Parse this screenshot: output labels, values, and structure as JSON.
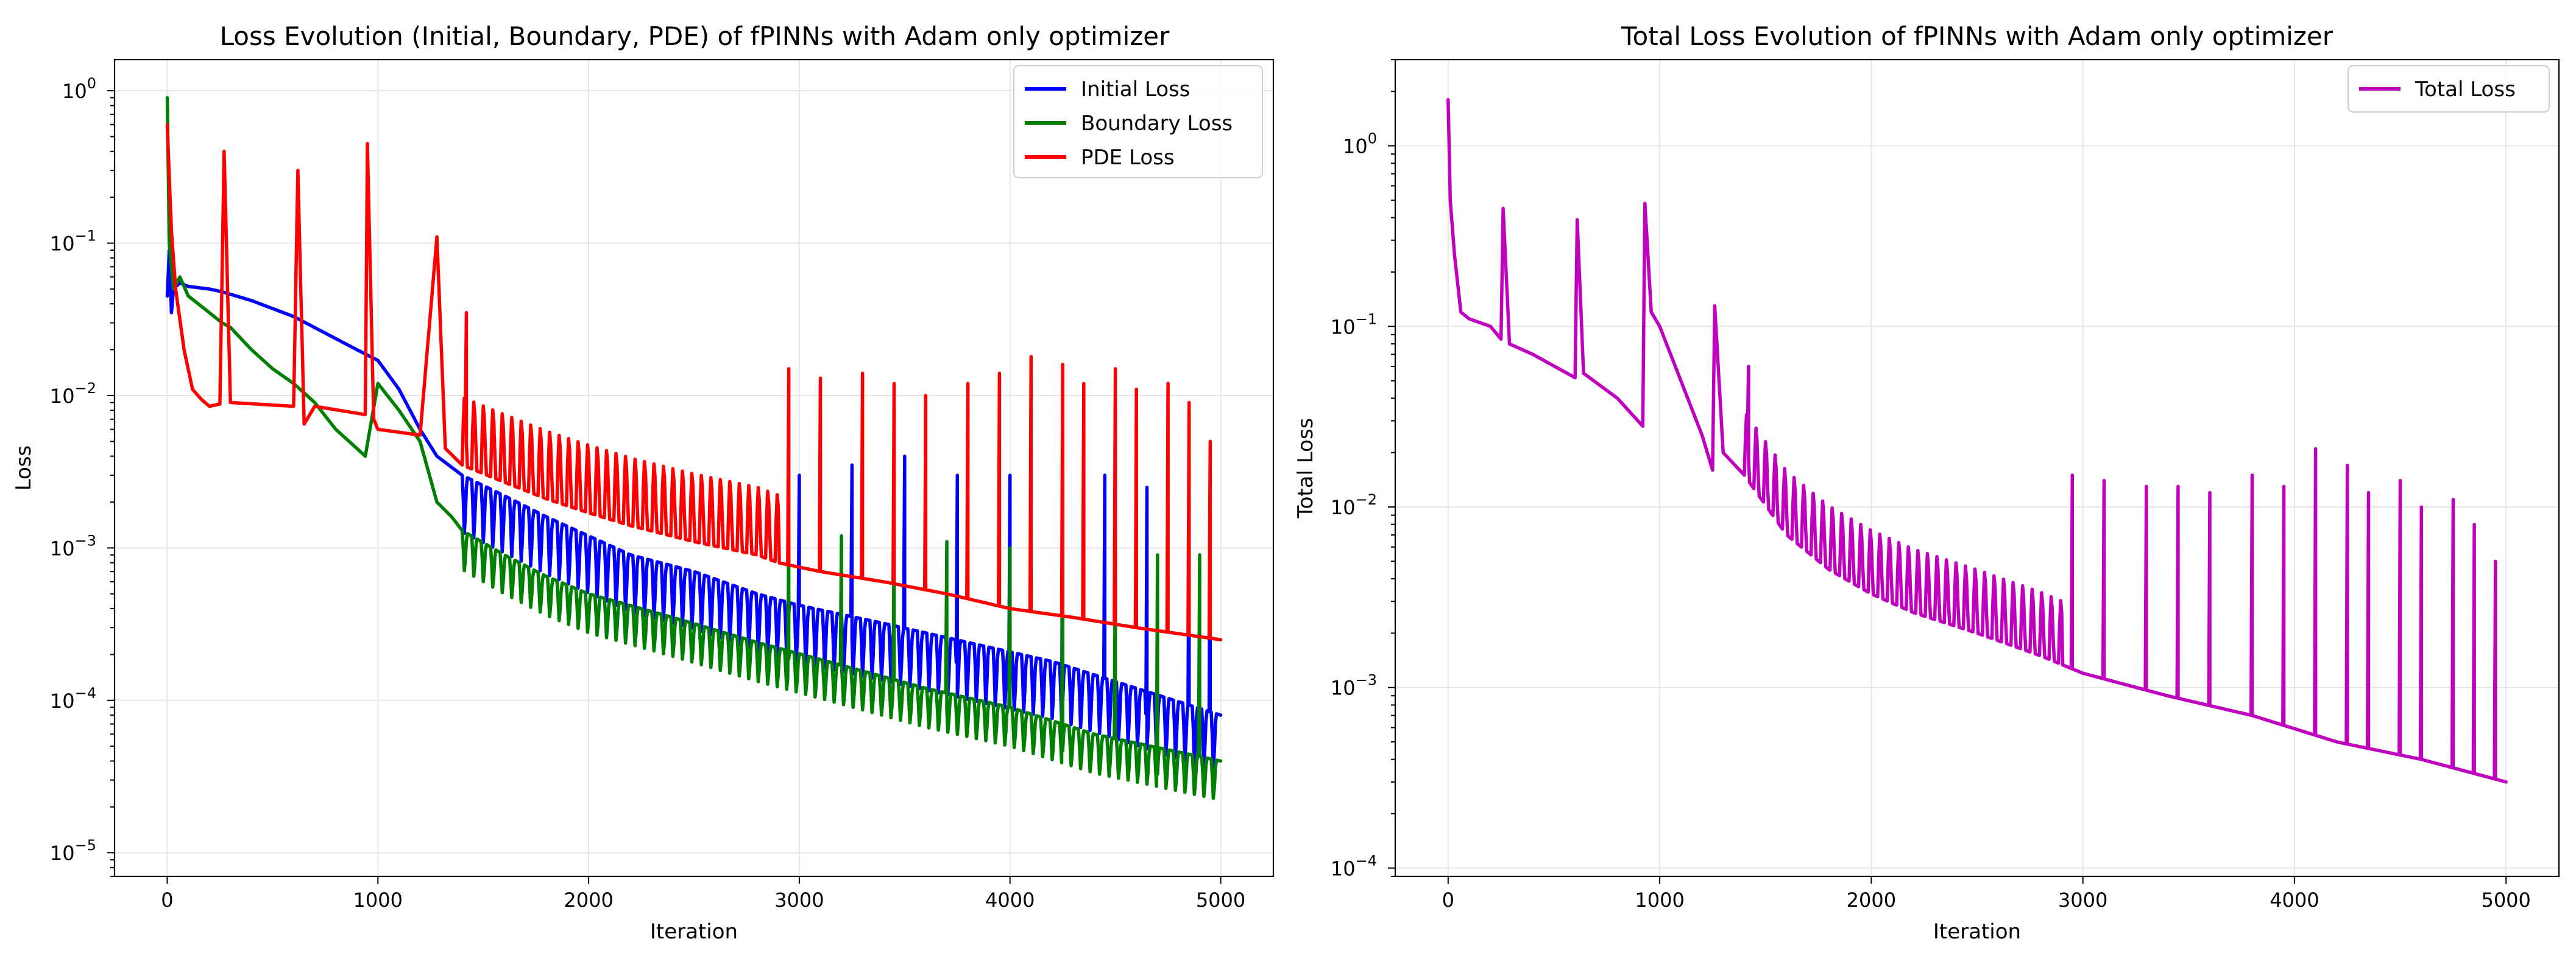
{
  "chart_data": [
    {
      "type": "line",
      "title": "Loss Evolution (Initial, Boundary, PDE) of fPINNs with Adam only optimizer",
      "xlabel": "Iteration",
      "ylabel": "Loss",
      "yscale": "log",
      "grid": true,
      "legend_position": "top-right",
      "xlim": [
        -250,
        5250
      ],
      "ylim": [
        7e-06,
        1.6
      ],
      "xticks": [
        0,
        1000,
        2000,
        3000,
        4000,
        5000
      ],
      "xtick_labels": [
        "0",
        "1000",
        "2000",
        "3000",
        "4000",
        "5000"
      ],
      "ytick_exponents": [
        0,
        -1,
        -2,
        -3,
        -4,
        -5
      ],
      "ytick_base": "10",
      "series": [
        {
          "name": "Initial Loss",
          "color": "#0000ff",
          "points": [
            [
              0,
              0.045
            ],
            [
              10,
              0.09
            ],
            [
              20,
              0.035
            ],
            [
              30,
              0.05
            ],
            [
              60,
              0.055
            ],
            [
              100,
              0.052
            ],
            [
              200,
              0.05
            ],
            [
              260,
              0.048
            ],
            [
              400,
              0.042
            ],
            [
              600,
              0.033
            ],
            [
              900,
              0.02
            ],
            [
              1000,
              0.017
            ],
            [
              1100,
              0.011
            ],
            [
              1200,
              0.006
            ],
            [
              1280,
              0.004
            ],
            [
              1400,
              0.003
            ],
            [
              1600,
              0.0022
            ],
            [
              1800,
              0.0016
            ],
            [
              2000,
              0.0012
            ],
            [
              2200,
              0.0009
            ],
            [
              2500,
              0.0007
            ],
            [
              2800,
              0.0005
            ],
            [
              3000,
              0.00042
            ],
            [
              3400,
              0.00032
            ],
            [
              3800,
              0.00024
            ],
            [
              4200,
              0.00018
            ],
            [
              4600,
              0.00012
            ],
            [
              5000,
              8e-05
            ]
          ],
          "osc_start": 1400,
          "osc_period": 45,
          "osc_low_factor": 0.35,
          "spikes": [
            [
              3000,
              0.003
            ],
            [
              3250,
              0.0035
            ],
            [
              3500,
              0.004
            ],
            [
              3750,
              0.003
            ],
            [
              4000,
              0.003
            ],
            [
              4250,
              0.003
            ],
            [
              4450,
              0.003
            ],
            [
              4650,
              0.0025
            ],
            [
              4850,
              0.0025
            ],
            [
              4950,
              0.0025
            ]
          ]
        },
        {
          "name": "Boundary Loss",
          "color": "#008000",
          "points": [
            [
              0,
              0.9
            ],
            [
              10,
              0.1
            ],
            [
              30,
              0.05
            ],
            [
              60,
              0.06
            ],
            [
              100,
              0.045
            ],
            [
              200,
              0.035
            ],
            [
              260,
              0.03
            ],
            [
              300,
              0.028
            ],
            [
              400,
              0.02
            ],
            [
              500,
              0.015
            ],
            [
              600,
              0.012
            ],
            [
              700,
              0.009
            ],
            [
              800,
              0.006
            ],
            [
              900,
              0.0045
            ],
            [
              940,
              0.004
            ],
            [
              1000,
              0.012
            ],
            [
              1100,
              0.008
            ],
            [
              1200,
              0.005
            ],
            [
              1280,
              0.002
            ],
            [
              1350,
              0.0016
            ],
            [
              1400,
              0.0013
            ],
            [
              1600,
              0.0009
            ],
            [
              1800,
              0.00065
            ],
            [
              2000,
              0.0005
            ],
            [
              2400,
              0.00035
            ],
            [
              2800,
              0.00024
            ],
            [
              3200,
              0.00017
            ],
            [
              3600,
              0.00012
            ],
            [
              4000,
              9e-05
            ],
            [
              4400,
              6e-05
            ],
            [
              5000,
              4e-05
            ]
          ],
          "osc_start": 1400,
          "osc_period": 45,
          "osc_low_factor": 0.5,
          "spikes": [
            [
              2950,
              0.0012
            ],
            [
              3200,
              0.0012
            ],
            [
              3450,
              0.0012
            ],
            [
              3700,
              0.0011
            ],
            [
              4000,
              0.001
            ],
            [
              4250,
              0.001
            ],
            [
              4500,
              0.001
            ],
            [
              4700,
              0.0009
            ],
            [
              4900,
              0.0009
            ]
          ]
        },
        {
          "name": "PDE Loss",
          "color": "#ff0000",
          "points": [
            [
              0,
              0.6
            ],
            [
              20,
              0.12
            ],
            [
              40,
              0.05
            ],
            [
              80,
              0.02
            ],
            [
              120,
              0.011
            ],
            [
              160,
              0.0095
            ],
            [
              200,
              0.0085
            ],
            [
              250,
              0.0088
            ],
            [
              270,
              0.4
            ],
            [
              300,
              0.009
            ],
            [
              600,
              0.0085
            ],
            [
              620,
              0.3
            ],
            [
              650,
              0.0065
            ],
            [
              700,
              0.0085
            ],
            [
              940,
              0.0075
            ],
            [
              950,
              0.45
            ],
            [
              980,
              0.007
            ],
            [
              1000,
              0.006
            ],
            [
              1200,
              0.0055
            ],
            [
              1280,
              0.11
            ],
            [
              1320,
              0.0045
            ],
            [
              1400,
              0.0035
            ],
            [
              1600,
              0.0027
            ],
            [
              1800,
              0.0021
            ],
            [
              2000,
              0.0017
            ],
            [
              2200,
              0.0014
            ],
            [
              2500,
              0.0011
            ],
            [
              2800,
              0.0009
            ],
            [
              2900,
              0.0008
            ],
            [
              3100,
              0.0007
            ],
            [
              3400,
              0.0006
            ],
            [
              3700,
              0.0005
            ],
            [
              4000,
              0.0004
            ],
            [
              4300,
              0.00035
            ],
            [
              4600,
              0.0003
            ],
            [
              5000,
              0.00025
            ]
          ],
          "osc_start": 1400,
          "osc_period": 45,
          "osc_high_factor": 3.0,
          "osc_high_factor_end": 2900,
          "spikes": [
            [
              1420,
              0.035
            ],
            [
              2950,
              0.015
            ],
            [
              3100,
              0.013
            ],
            [
              3300,
              0.014
            ],
            [
              3450,
              0.012
            ],
            [
              3600,
              0.01
            ],
            [
              3800,
              0.012
            ],
            [
              3950,
              0.014
            ],
            [
              4100,
              0.018
            ],
            [
              4250,
              0.016
            ],
            [
              4350,
              0.012
            ],
            [
              4500,
              0.015
            ],
            [
              4600,
              0.011
            ],
            [
              4750,
              0.012
            ],
            [
              4850,
              0.009
            ],
            [
              4950,
              0.005
            ]
          ]
        }
      ]
    },
    {
      "type": "line",
      "title": "Total Loss Evolution of fPINNs with Adam only optimizer",
      "xlabel": "Iteration",
      "ylabel": "Total Loss",
      "yscale": "log",
      "grid": true,
      "legend_position": "top-right",
      "xlim": [
        -250,
        5250
      ],
      "ylim": [
        9e-05,
        3.0
      ],
      "xticks": [
        0,
        1000,
        2000,
        3000,
        4000,
        5000
      ],
      "xtick_labels": [
        "0",
        "1000",
        "2000",
        "3000",
        "4000",
        "5000"
      ],
      "ytick_exponents": [
        0,
        -1,
        -2,
        -3,
        -4
      ],
      "ytick_base": "10",
      "series": [
        {
          "name": "Total Loss",
          "color": "#bf00bf",
          "points": [
            [
              0,
              1.8
            ],
            [
              10,
              0.5
            ],
            [
              30,
              0.25
            ],
            [
              60,
              0.12
            ],
            [
              100,
              0.11
            ],
            [
              200,
              0.1
            ],
            [
              250,
              0.085
            ],
            [
              260,
              0.45
            ],
            [
              290,
              0.08
            ],
            [
              400,
              0.07
            ],
            [
              600,
              0.052
            ],
            [
              610,
              0.39
            ],
            [
              640,
              0.055
            ],
            [
              800,
              0.04
            ],
            [
              920,
              0.028
            ],
            [
              930,
              0.48
            ],
            [
              960,
              0.12
            ],
            [
              1000,
              0.1
            ],
            [
              1100,
              0.05
            ],
            [
              1200,
              0.025
            ],
            [
              1250,
              0.016
            ],
            [
              1260,
              0.13
            ],
            [
              1300,
              0.02
            ],
            [
              1400,
              0.015
            ],
            [
              1600,
              0.007
            ],
            [
              1800,
              0.0045
            ],
            [
              2000,
              0.0033
            ],
            [
              2200,
              0.0026
            ],
            [
              2500,
              0.002
            ],
            [
              2800,
              0.0015
            ],
            [
              3000,
              0.0012
            ],
            [
              3400,
              0.0009
            ],
            [
              3800,
              0.0007
            ],
            [
              4200,
              0.0005
            ],
            [
              4600,
              0.0004
            ],
            [
              5000,
              0.0003
            ]
          ],
          "osc_start": 1400,
          "osc_period": 45,
          "osc_high_factor": 2.4,
          "osc_high_factor_end": 2900,
          "spikes": [
            [
              1420,
              0.06
            ],
            [
              2950,
              0.015
            ],
            [
              3100,
              0.014
            ],
            [
              3300,
              0.013
            ],
            [
              3450,
              0.013
            ],
            [
              3600,
              0.012
            ],
            [
              3800,
              0.015
            ],
            [
              3950,
              0.013
            ],
            [
              4100,
              0.021
            ],
            [
              4250,
              0.017
            ],
            [
              4350,
              0.012
            ],
            [
              4500,
              0.014
            ],
            [
              4600,
              0.01
            ],
            [
              4750,
              0.011
            ],
            [
              4850,
              0.008
            ],
            [
              4950,
              0.005
            ]
          ]
        }
      ]
    }
  ]
}
